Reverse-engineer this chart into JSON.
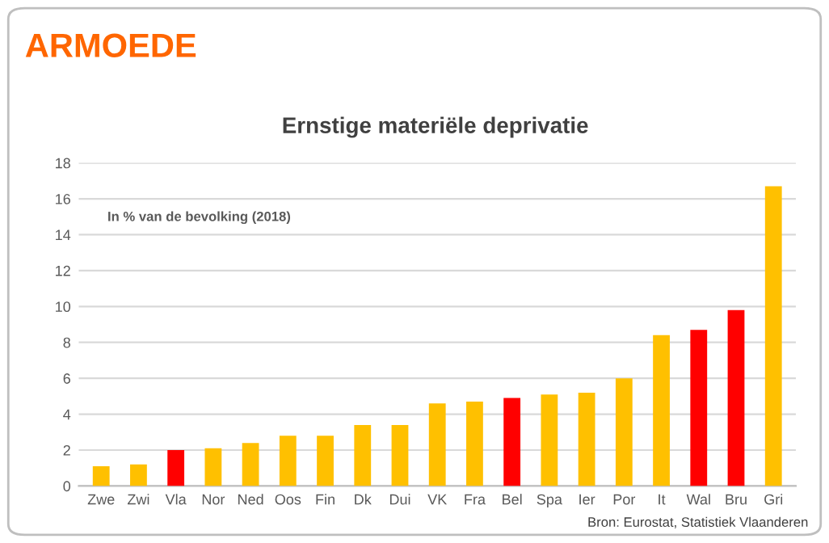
{
  "chart_data": {
    "type": "bar",
    "title": "ARMOEDE",
    "subtitle": "Ernstige materiële deprivatie",
    "categories": [
      "Zwe",
      "Zwi",
      "Vla",
      "Nor",
      "Ned",
      "Oos",
      "Fin",
      "Dk",
      "Dui",
      "VK",
      "Fra",
      "Bel",
      "Spa",
      "Ier",
      "Por",
      "It",
      "Wal",
      "Bru",
      "Gri"
    ],
    "values": [
      1.1,
      1.2,
      2.0,
      2.1,
      2.4,
      2.8,
      2.8,
      3.4,
      3.4,
      4.6,
      4.7,
      4.9,
      5.1,
      5.2,
      6.0,
      8.4,
      8.7,
      9.8,
      16.7
    ],
    "colors": [
      "#ffc000",
      "#ffc000",
      "#ff0000",
      "#ffc000",
      "#ffc000",
      "#ffc000",
      "#ffc000",
      "#ffc000",
      "#ffc000",
      "#ffc000",
      "#ffc000",
      "#ff0000",
      "#ffc000",
      "#ffc000",
      "#ffc000",
      "#ffc000",
      "#ff0000",
      "#ff0000",
      "#ffc000"
    ],
    "ylim": [
      0,
      18
    ],
    "yticks": [
      0,
      2,
      4,
      6,
      8,
      10,
      12,
      14,
      16,
      18
    ],
    "grid": "y",
    "annotations": [
      "In % van de bevolking (2018)",
      "Bron: Eurostat, Statistiek Vlaanderen"
    ]
  }
}
